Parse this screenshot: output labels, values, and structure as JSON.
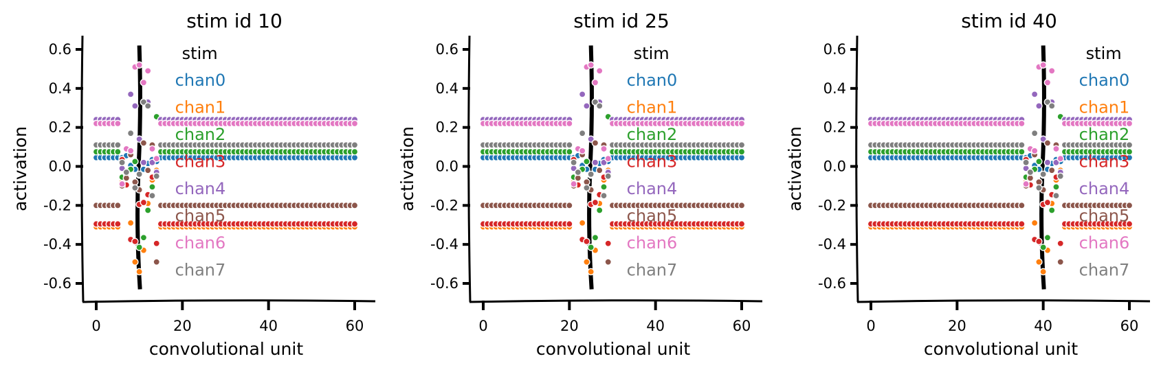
{
  "chart_data": [
    {
      "type": "scatter",
      "title": "stim id 10",
      "stim_position": 10,
      "xlabel": "convolutional unit",
      "ylabel": "activation",
      "xlim": [
        -2,
        62
      ],
      "ylim": [
        -0.68,
        0.68
      ],
      "xticks": [
        0,
        20,
        40,
        60
      ],
      "yticks": [
        -0.6,
        -0.4,
        -0.2,
        0.0,
        0.2,
        0.4,
        0.6
      ],
      "xtick_labels": [
        "0",
        "20",
        "40",
        "60"
      ],
      "ytick_labels": [
        "-0.6",
        "-0.4",
        "-0.2",
        "0.0",
        "0.2",
        "0.4",
        "0.6"
      ],
      "grid": false,
      "legend_position": "top-right"
    },
    {
      "type": "scatter",
      "title": "stim id 25",
      "stim_position": 25,
      "xlabel": "convolutional unit",
      "ylabel": "activation",
      "xlim": [
        -2,
        62
      ],
      "ylim": [
        -0.68,
        0.68
      ],
      "xticks": [
        0,
        20,
        40,
        60
      ],
      "yticks": [
        -0.6,
        -0.4,
        -0.2,
        0.0,
        0.2,
        0.4,
        0.6
      ],
      "xtick_labels": [
        "0",
        "20",
        "40",
        "60"
      ],
      "ytick_labels": [
        "-0.6",
        "-0.4",
        "-0.2",
        "0.0",
        "0.2",
        "0.4",
        "0.6"
      ],
      "grid": false,
      "legend_position": "top-right"
    },
    {
      "type": "scatter",
      "title": "stim id 40",
      "stim_position": 40,
      "xlabel": "convolutional unit",
      "ylabel": "activation",
      "xlim": [
        -2,
        62
      ],
      "ylim": [
        -0.68,
        0.68
      ],
      "xticks": [
        0,
        20,
        40,
        60
      ],
      "yticks": [
        -0.6,
        -0.4,
        -0.2,
        0.0,
        0.2,
        0.4,
        0.6
      ],
      "xtick_labels": [
        "0",
        "20",
        "40",
        "60"
      ],
      "ytick_labels": [
        "-0.6",
        "-0.4",
        "-0.2",
        "0.0",
        "0.2",
        "0.4",
        "0.6"
      ],
      "grid": false,
      "legend_position": "top-right"
    }
  ],
  "legend": {
    "stim_label": "stim",
    "stim_color": "#000000",
    "channels": [
      {
        "name": "chan0",
        "color": "#1f77b4",
        "baseline": 0.045,
        "bump": [
          0,
          0.01,
          -0.04,
          -0.06,
          -0.09,
          -0.06,
          -0.03,
          -0.01,
          -0.02
        ]
      },
      {
        "name": "chan1",
        "color": "#ff7f0e",
        "baseline": -0.31,
        "bump": [
          0.23,
          0.22,
          0.02,
          -0.18,
          -0.23,
          -0.12,
          0.12,
          0.24,
          0.29
        ]
      },
      {
        "name": "chan2",
        "color": "#2ca02c",
        "baseline": 0.075,
        "bump": [
          -0.13,
          -0.17,
          -0.09,
          -0.05,
          -0.49,
          -0.44,
          -0.3,
          -0.18,
          0.18
        ]
      },
      {
        "name": "chan3",
        "color": "#d62728",
        "baseline": -0.295,
        "bump": [
          0.33,
          0.2,
          -0.08,
          -0.09,
          0.1,
          0.11,
          0.15,
          0.24,
          -0.1
        ]
      },
      {
        "name": "chan4",
        "color": "#9467bd",
        "baseline": 0.24,
        "bump": [
          -0.25,
          -0.28,
          0.13,
          0.07,
          -0.1,
          -0.22,
          0.09,
          -0.22,
          -0.27
        ]
      },
      {
        "name": "chan5",
        "color": "#8c564b",
        "baseline": -0.2,
        "bump": [
          0.1,
          0.14,
          0.26,
          0.12,
          0.08,
          0.32,
          0.18,
          0.31,
          -0.29
        ]
      },
      {
        "name": "chan6",
        "color": "#e377c2",
        "baseline": 0.22,
        "bump": [
          -0.31,
          -0.13,
          -0.14,
          0.29,
          0.3,
          0.21,
          0.27,
          -0.13,
          -0.18
        ]
      },
      {
        "name": "chan7",
        "color": "#7f7f7f",
        "baseline": 0.11,
        "bump": [
          -0.09,
          -0.14,
          0.06,
          -0.22,
          -0.15,
          0.22,
          0.2,
          -0.26,
          -0.16
        ]
      }
    ]
  }
}
